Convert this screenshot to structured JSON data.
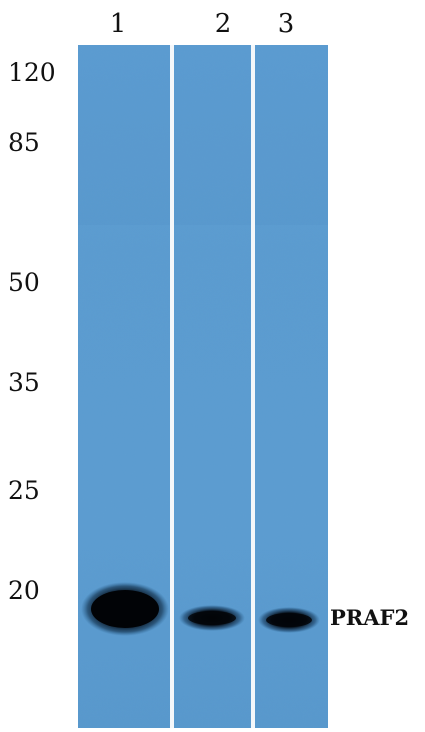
{
  "lanes": [
    {
      "number": "1",
      "band_intensity": 1.0
    },
    {
      "number": "2",
      "band_intensity": 0.8
    },
    {
      "number": "3",
      "band_intensity": 0.85
    }
  ],
  "molecular_weight_markers": [
    "120",
    "85",
    "50",
    "35",
    "25",
    "20"
  ],
  "band_label": "PRAF2",
  "colors": {
    "membrane": "#5d9fd3",
    "membrane_dark": "#4f8ec3",
    "band": "#02060c",
    "lane_separator": "#f4f7fa",
    "text": "#111111"
  }
}
